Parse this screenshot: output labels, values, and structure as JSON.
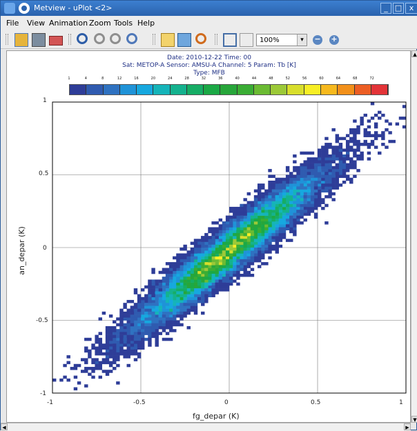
{
  "window": {
    "title": "Metview - uPlot <2>"
  },
  "menu": [
    "File",
    "View",
    "Animation",
    "Zoom",
    "Tools",
    "Help"
  ],
  "toolbar": {
    "zoom_value": "100%"
  },
  "plot": {
    "header": [
      "Date: 2010-12-22 Time: 00",
      "Sat: METOP-A Sensor: AMSU-A Channel: 5 Param: Tb [K]",
      "Type: MFB"
    ],
    "xlabel": "fg_depar (K)",
    "ylabel": "an_depar (K)",
    "xticks": [
      "-1",
      "-0.5",
      "0",
      "0.5",
      "1"
    ],
    "yticks": [
      "1",
      "0.5",
      "0",
      "-0.5",
      "-1"
    ]
  },
  "colorbar": {
    "labels": [
      "1",
      "4",
      "8",
      "12",
      "16",
      "20",
      "24",
      "28",
      "32",
      "36",
      "40",
      "44",
      "48",
      "52",
      "56",
      "60",
      "64",
      "68",
      "72"
    ],
    "colors": [
      "#2e3d98",
      "#2f5bb0",
      "#2f72c1",
      "#1f93d8",
      "#16a8df",
      "#15b4b9",
      "#14b28e",
      "#16ad65",
      "#1ba946",
      "#27a63a",
      "#3aad34",
      "#6bbb33",
      "#9cc938",
      "#d8de2c",
      "#f7ee25",
      "#f6b91e",
      "#f2901a",
      "#ec5e24",
      "#e33438"
    ]
  },
  "chart_data": {
    "type": "heatmap",
    "title": "",
    "xlabel": "fg_depar (K)",
    "ylabel": "an_depar (K)",
    "xlim": [
      -1,
      1
    ],
    "ylim": [
      -1,
      1
    ],
    "description_values": {
      "center": [
        0,
        0
      ],
      "peak_density_bin": [
        -0.08,
        -0.06
      ]
    },
    "density_levels": [
      1,
      4,
      8,
      12,
      16,
      20,
      24,
      28,
      32,
      36,
      40,
      44,
      48,
      52,
      56,
      60,
      64,
      68,
      72
    ]
  }
}
